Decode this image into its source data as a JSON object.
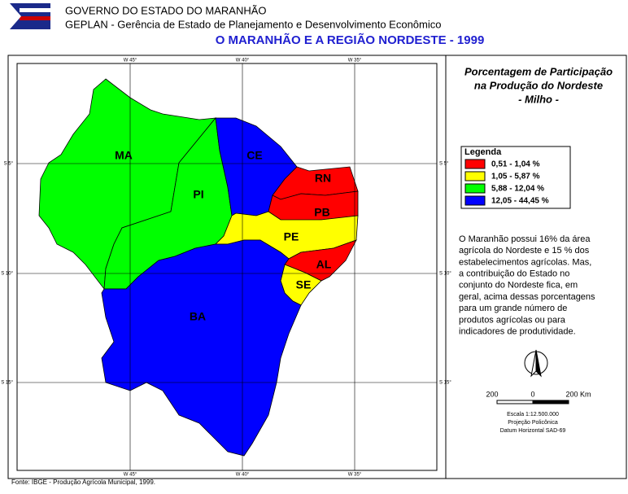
{
  "header": {
    "agency": "GOVERNO DO ESTADO DO MARANHÃO",
    "department": "GEPLAN - Gerência de Estado de Planejamento e Desenvolvimento Econômico",
    "title": "O MARANHÃO E A REGIÃO NORDESTE - 1999"
  },
  "map": {
    "longitude_labels": [
      "W 45°",
      "W 40°",
      "W 35°"
    ],
    "latitude_labels": [
      "S 5°",
      "S 10°",
      "S 15°"
    ],
    "states": [
      {
        "label": "MA",
        "color": "#00ff00"
      },
      {
        "label": "PI",
        "color": "#00ff00"
      },
      {
        "label": "CE",
        "color": "#0000ff"
      },
      {
        "label": "RN",
        "color": "#ff0000"
      },
      {
        "label": "PB",
        "color": "#ff0000"
      },
      {
        "label": "PE",
        "color": "#ffff00"
      },
      {
        "label": "AL",
        "color": "#ff0000"
      },
      {
        "label": "SE",
        "color": "#ffff00"
      },
      {
        "label": "BA",
        "color": "#0000ff"
      }
    ]
  },
  "legend": {
    "title_lines": [
      "Porcentagem de Participação",
      "na Produção do Nordeste",
      "- Milho -"
    ],
    "heading": "Legenda",
    "items": [
      {
        "label": "0,51 - 1,04 %",
        "color": "#ff0000"
      },
      {
        "label": "1,05 - 5,87 %",
        "color": "#ffff00"
      },
      {
        "label": "5,88 - 12,04 %",
        "color": "#00ff00"
      },
      {
        "label": "12,05 - 44,45 %",
        "color": "#0000ff"
      }
    ]
  },
  "description_lines": [
    "O Maranhão possui 16% da área",
    "agrícola do Nordeste e 15 % dos",
    "estabelecimentos agrícolas. Mas,",
    "a contribuição do Estado no",
    "conjunto do Nordeste fica, em",
    "geral, acima dessas porcentagens",
    "para um grande número de",
    "produtos agrícolas ou para",
    "indicadores de produtividade."
  ],
  "north": "N",
  "scale": {
    "labels": [
      "200",
      "0",
      "200 Km"
    ],
    "ratio": "Escala 1:12.500.000",
    "projection": "Projeção Policônica",
    "datum": "Datum Horizontal SAD-69"
  },
  "source": "Fonte: IBGE - Produção Agrícola Municipal, 1999."
}
